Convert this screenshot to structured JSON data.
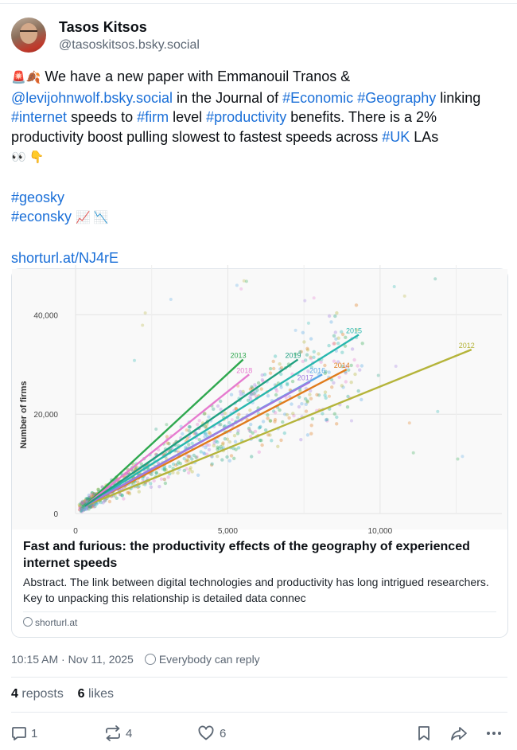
{
  "author": {
    "name": "Tasos Kitsos",
    "handle": "@tasoskitsos.bsky.social"
  },
  "post": {
    "line1_emoji": "🚨🍂",
    "line1_text": " We have a new paper with Emmanouil Tranos & ",
    "mention": "@levijohnwolf.bsky.social",
    "t_in_journal": " in the Journal of ",
    "tag_economic": "#Economic",
    "tag_geography": "#Geography",
    "t_linking": "linking ",
    "tag_internet": "#internet",
    "t_speeds": " speeds to ",
    "tag_firm": "#firm",
    "t_level": " level ",
    "tag_productivity": "#productivity",
    "t_benefits": " benefits. There is a 2% productivity boost pulling slowest to fastest speeds across ",
    "tag_uk": "#UK",
    "t_las": " LAs",
    "end_emoji": "👀 👇",
    "tag_geosky": "#geosky",
    "tag_econsky": "#econsky",
    "econsky_emoji": "📈 📉",
    "link": "shorturl.at/NJ4rE"
  },
  "link_card": {
    "title": "Fast and furious: the productivity effects of the geography of experienced internet speeds",
    "description": "Abstract. The link between digital technologies and productivity has long intrigued researchers. Key to unpacking this relationship is detailed data connec",
    "domain": "shorturl.at"
  },
  "chart_data": {
    "type": "scatter",
    "ylabel": "Number of firms",
    "ytick_labels": [
      "0",
      "20,000",
      "40,000"
    ],
    "xtick_labels": [
      "0",
      "5,000",
      "10,000"
    ],
    "ylim": [
      0,
      50000
    ],
    "xlim": [
      0,
      14000
    ],
    "series": [
      {
        "name": "2012",
        "color": "#b5b43a",
        "line": [
          [
            300,
            1500
          ],
          [
            13000,
            33000
          ]
        ]
      },
      {
        "name": "2013",
        "color": "#2fa84f",
        "line": [
          [
            300,
            1500
          ],
          [
            5500,
            31000
          ]
        ]
      },
      {
        "name": "2014",
        "color": "#e07b1c",
        "line": [
          [
            300,
            1500
          ],
          [
            8900,
            29000
          ]
        ]
      },
      {
        "name": "2015",
        "color": "#28b7ae",
        "line": [
          [
            300,
            1500
          ],
          [
            9300,
            36000
          ]
        ]
      },
      {
        "name": "2016",
        "color": "#5aa9e6",
        "line": [
          [
            300,
            1500
          ],
          [
            8100,
            28000
          ]
        ]
      },
      {
        "name": "2017",
        "color": "#a07ae0",
        "line": [
          [
            300,
            1500
          ],
          [
            7700,
            26500
          ]
        ]
      },
      {
        "name": "2018",
        "color": "#e67bcf",
        "line": [
          [
            300,
            1500
          ],
          [
            5700,
            28000
          ]
        ]
      },
      {
        "name": "2019",
        "color": "#20a080",
        "line": [
          [
            300,
            1500
          ],
          [
            7300,
            31000
          ]
        ]
      }
    ]
  },
  "meta": {
    "timestamp": "10:15 AM · Nov 11, 2025",
    "reply_setting": "Everybody can reply"
  },
  "stats": {
    "reposts_count": "4",
    "reposts_label": "reposts",
    "likes_count": "6",
    "likes_label": "likes"
  },
  "actions": {
    "reply_count": "1",
    "repost_count": "4",
    "like_count": "6"
  },
  "colors": {
    "link": "#1a6fd8",
    "muted": "#5b6673"
  }
}
